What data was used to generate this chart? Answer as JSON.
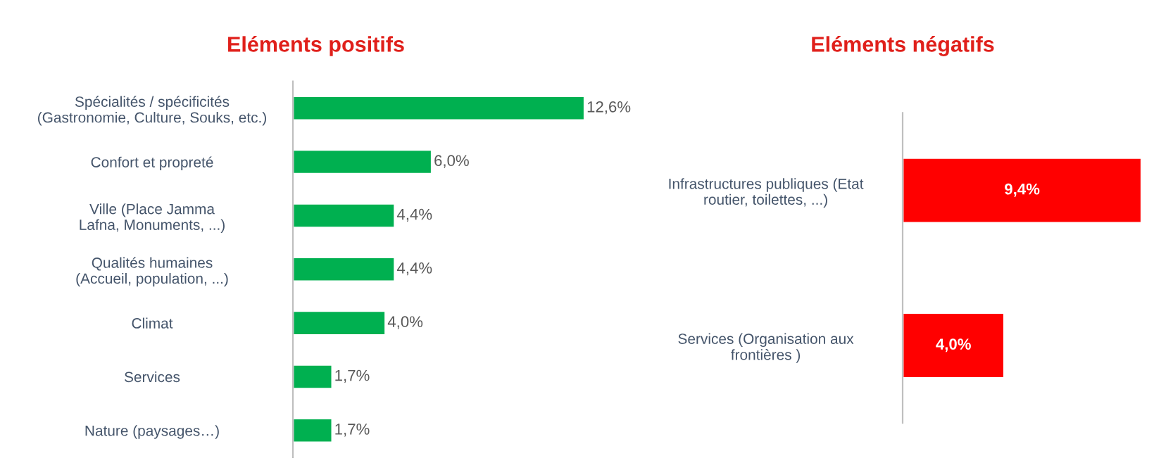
{
  "chart_data": [
    {
      "type": "bar",
      "orientation": "horizontal",
      "title": "Eléments positifs",
      "categories": [
        "Spécialités / spécificités\n(Gastronomie, Culture, Souks, etc.)",
        "Confort et propreté",
        "Ville (Place Jamma\nLafna, Monuments, ...)",
        "Qualités humaines\n(Accueil, population, ...)",
        "Climat",
        "Services",
        "Nature (paysages…)"
      ],
      "values": [
        12.6,
        6.0,
        4.4,
        4.4,
        4.0,
        1.7,
        1.7
      ],
      "color": "#00b050",
      "value_labels": [
        "12,6%",
        "6,0%",
        "4,4%",
        "4,4%",
        "4,0%",
        "1,7%",
        "1,7%"
      ]
    },
    {
      "type": "bar",
      "orientation": "horizontal",
      "title": "Eléments négatifs",
      "categories": [
        "Infrastructures publiques (Etat\nroutier, toilettes, ...)",
        "Services (Organisation aux\nfrontières )"
      ],
      "values": [
        9.4,
        4.0
      ],
      "color": "#ff0000",
      "value_labels": [
        "9,4%",
        "4,0%"
      ]
    }
  ]
}
